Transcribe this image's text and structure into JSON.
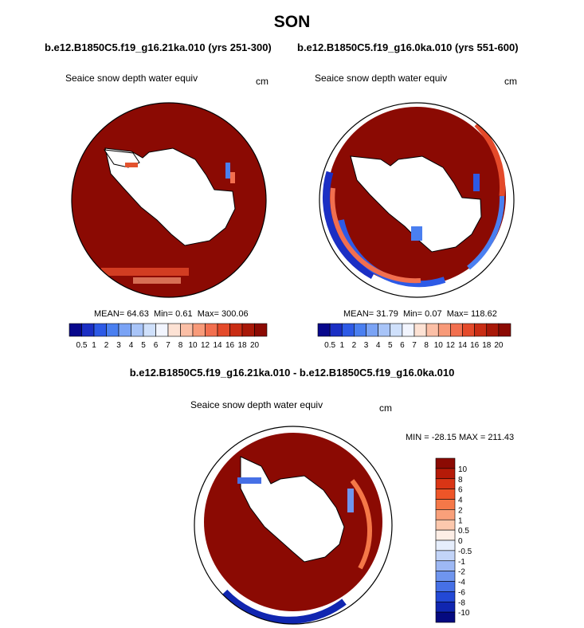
{
  "title": "SON",
  "panels": [
    {
      "id": "p1",
      "subtitle": "b.e12.B1850C5.f19_g16.21ka.010 (yrs 251-300)",
      "field_label": "Seaice snow depth water equiv",
      "units": "cm",
      "stats": {
        "mean_label": "MEAN=",
        "mean": "64.63",
        "min_label": "Min=",
        "min": "0.61",
        "max_label": "Max=",
        "max": "300.06"
      }
    },
    {
      "id": "p2",
      "subtitle": "b.e12.B1850C5.f19_g16.0ka.010 (yrs 551-600)",
      "field_label": "Seaice snow depth water equiv",
      "units": "cm",
      "stats": {
        "mean_label": "MEAN=",
        "mean": "31.79",
        "min_label": "Min=",
        "min": "0.07",
        "max_label": "Max=",
        "max": "118.62"
      }
    },
    {
      "id": "p3",
      "subtitle": "b.e12.B1850C5.f19_g16.21ka.010 - b.e12.B1850C5.f19_g16.0ka.010",
      "field_label": "Seaice snow depth water equiv",
      "units": "cm",
      "stats_text": "MIN = -28.15 MAX = 211.43"
    }
  ],
  "colorbar_abs": {
    "orientation": "horizontal",
    "levels": [
      "0.5",
      "1",
      "2",
      "3",
      "4",
      "5",
      "6",
      "7",
      "8",
      "10",
      "12",
      "14",
      "16",
      "18",
      "20"
    ],
    "colors": [
      "#08088c",
      "#1b2fc4",
      "#2d5ae6",
      "#4a7ff0",
      "#7aa3f5",
      "#a8c4f8",
      "#cfe0fb",
      "#f2f5fe",
      "#fde2d4",
      "#fbbfa6",
      "#f89a79",
      "#f26f4f",
      "#e44a2a",
      "#c92d14",
      "#a81808",
      "#8b0a03"
    ]
  },
  "colorbar_diff": {
    "orientation": "vertical",
    "levels": [
      "10",
      "8",
      "6",
      "4",
      "2",
      "1",
      "0.5",
      "0",
      "-0.5",
      "-1",
      "-2",
      "-4",
      "-6",
      "-8",
      "-10"
    ],
    "colors": [
      "#8b0a03",
      "#b51a08",
      "#d93515",
      "#ee5528",
      "#f57848",
      "#f9a07a",
      "#fcc8ad",
      "#fdeee6",
      "#e6eefc",
      "#c2d4f8",
      "#9db8f4",
      "#6f95ee",
      "#4670e6",
      "#2349d6",
      "#1026b0",
      "#050a80"
    ]
  },
  "chart_data": {
    "type": "heatmap",
    "projection": "south polar stereographic",
    "maps": [
      {
        "panel": "p1",
        "mean": 64.63,
        "min": 0.61,
        "max": 300.06,
        "units": "cm"
      },
      {
        "panel": "p2",
        "mean": 31.79,
        "min": 0.07,
        "max": 118.62,
        "units": "cm"
      },
      {
        "panel": "p3",
        "min": -28.15,
        "max": 211.43,
        "units": "cm"
      }
    ]
  }
}
